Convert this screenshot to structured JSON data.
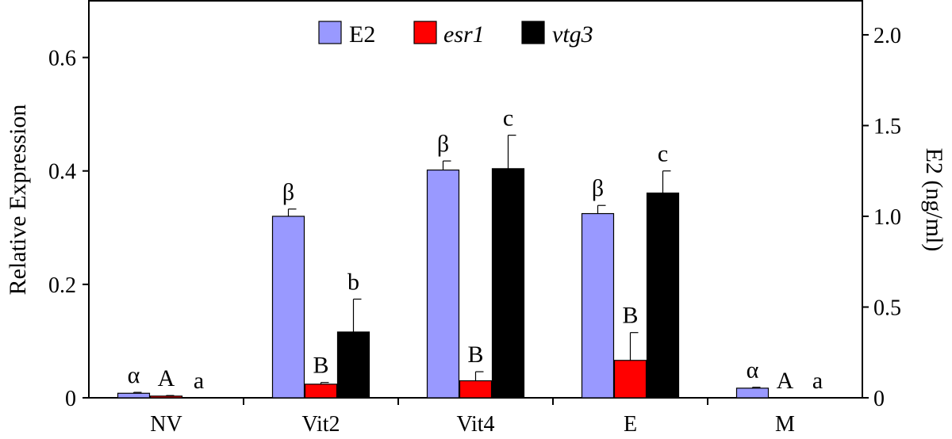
{
  "chart_data": {
    "type": "bar",
    "categories": [
      "NV",
      "Vit2",
      "Vit4",
      "E",
      "M"
    ],
    "ylabel_left": "Relative Expression",
    "ylabel_right": "E2 (ng/ml)",
    "ylim_left": [
      0,
      0.7
    ],
    "ylim_right": [
      0,
      2.1875
    ],
    "yticks_left": [
      "0",
      "0.2",
      "0.4",
      "0.6"
    ],
    "yticks_left_values": [
      0,
      0.2,
      0.4,
      0.6
    ],
    "yticks_right": [
      "0",
      "0.5",
      "1.0",
      "1.5",
      "2.0"
    ],
    "yticks_right_values": [
      0,
      0.5,
      1.0,
      1.5,
      2.0
    ],
    "legend_position": "top-center",
    "grid": false,
    "series": [
      {
        "name": "E2",
        "axis": "right",
        "color": "#9999ff",
        "values": [
          0.025,
          1.0,
          1.255,
          1.015,
          0.053
        ],
        "errors": [
          0.005,
          0.04,
          0.05,
          0.045,
          0.005
        ],
        "labels": [
          "α",
          "β",
          "β",
          "β",
          "α"
        ]
      },
      {
        "name": "esr1",
        "axis": "left",
        "color": "#ff0000",
        "values": [
          0.003,
          0.024,
          0.03,
          0.066,
          0
        ],
        "errors": [
          0.001,
          0.003,
          0.016,
          0.049,
          0
        ],
        "labels": [
          "A",
          "B",
          "B",
          "B",
          "A"
        ]
      },
      {
        "name": "vtg3",
        "axis": "left",
        "color": "#000000",
        "values": [
          0,
          0.116,
          0.404,
          0.361,
          0
        ],
        "errors": [
          0,
          0.058,
          0.059,
          0.039,
          0
        ],
        "labels": [
          "a",
          "b",
          "c",
          "c",
          "a"
        ]
      }
    ]
  }
}
